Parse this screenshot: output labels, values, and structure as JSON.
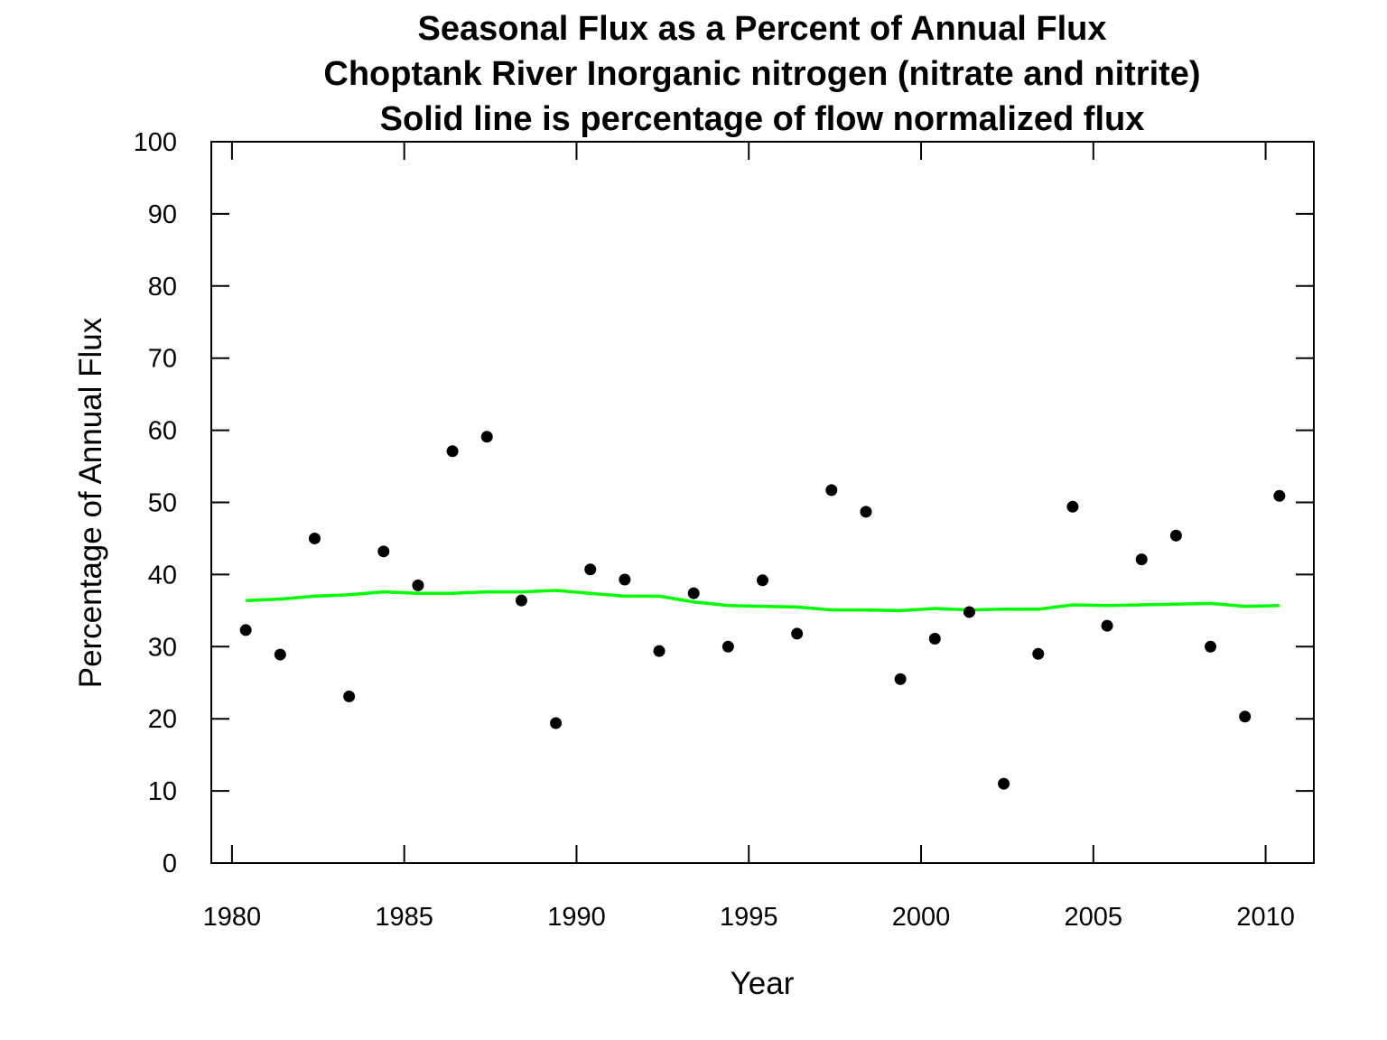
{
  "chart_data": {
    "type": "scatter",
    "title_lines": [
      "Seasonal Flux as a Percent of Annual Flux",
      "Choptank River Inorganic nitrogen (nitrate and nitrite)",
      "Solid line is percentage of flow normalized flux"
    ],
    "xlabel": "Year",
    "ylabel": "Percentage of Annual Flux",
    "xlim": [
      1979.4,
      2011.4
    ],
    "ylim": [
      0,
      100
    ],
    "xticks": [
      1980,
      1985,
      1990,
      1995,
      2000,
      2005,
      2010
    ],
    "yticks": [
      0,
      10,
      20,
      30,
      40,
      50,
      60,
      70,
      80,
      90,
      100
    ],
    "grid": false,
    "legend": "none",
    "series": [
      {
        "kind": "points",
        "color": "#000000",
        "x": [
          1980.4,
          1981.4,
          1982.4,
          1983.4,
          1984.4,
          1985.4,
          1986.4,
          1987.4,
          1988.4,
          1989.4,
          1990.4,
          1991.4,
          1992.4,
          1993.4,
          1994.4,
          1995.4,
          1996.4,
          1997.4,
          1998.4,
          1999.4,
          2000.4,
          2001.4,
          2002.4,
          2003.4,
          2004.4,
          2005.4,
          2006.4,
          2007.4,
          2008.4,
          2009.4,
          2010.4
        ],
        "y": [
          32.3,
          28.9,
          45.0,
          23.1,
          43.2,
          38.5,
          57.1,
          59.1,
          36.4,
          19.4,
          40.7,
          39.3,
          29.4,
          37.4,
          30.0,
          39.2,
          31.8,
          51.7,
          48.7,
          25.5,
          31.1,
          34.8,
          11.0,
          29.0,
          49.4,
          32.9,
          42.1,
          45.4,
          30.0,
          20.3,
          50.9
        ]
      },
      {
        "kind": "line",
        "color": "#00ff00",
        "x": [
          1980.4,
          1981.4,
          1982.4,
          1983.4,
          1984.4,
          1985.4,
          1986.4,
          1987.4,
          1988.4,
          1989.4,
          1990.4,
          1991.4,
          1992.4,
          1993.4,
          1994.4,
          1995.4,
          1996.4,
          1997.4,
          1998.4,
          1999.4,
          2000.4,
          2001.4,
          2002.4,
          2003.4,
          2004.4,
          2005.4,
          2006.4,
          2007.4,
          2008.4,
          2009.4,
          2010.4
        ],
        "y": [
          36.4,
          36.6,
          37.0,
          37.2,
          37.6,
          37.4,
          37.4,
          37.6,
          37.6,
          37.8,
          37.4,
          37.0,
          37.0,
          36.2,
          35.7,
          35.6,
          35.5,
          35.1,
          35.1,
          35.0,
          35.3,
          35.1,
          35.2,
          35.2,
          35.8,
          35.7,
          35.8,
          35.9,
          36.0,
          35.6,
          35.7
        ]
      }
    ]
  }
}
